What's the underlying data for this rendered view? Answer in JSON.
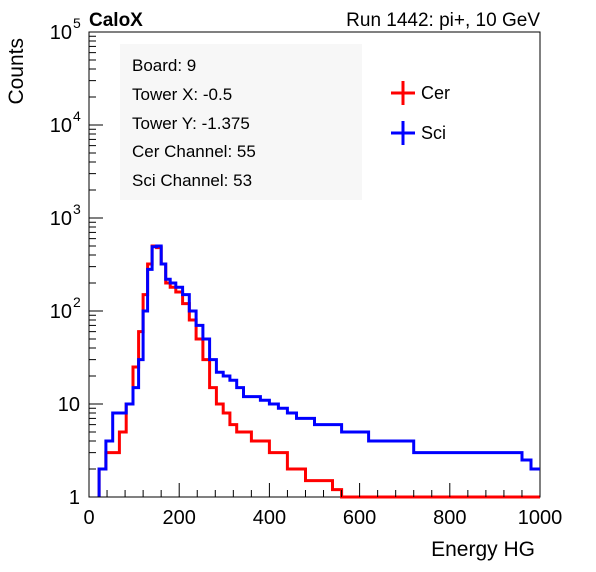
{
  "header": {
    "left": "CaloX",
    "right": "Run 1442: pi+, 10 GeV"
  },
  "info_box": {
    "lines": [
      "Board: 9",
      "Tower X: -0.5",
      "Tower Y: -1.375",
      "Cer Channel: 55",
      "Sci Channel: 53"
    ]
  },
  "colors": {
    "Cer": "#ff0000",
    "Sci": "#0000ff"
  },
  "chart_data": {
    "type": "line",
    "style": "step histogram",
    "title": "",
    "xlabel": "Energy HG",
    "ylabel": "Counts",
    "xlim": [
      0,
      1000
    ],
    "ylim": [
      1,
      100000
    ],
    "ylog": true,
    "grid": false,
    "legend_position": "top-right",
    "x_ticks": [
      "0",
      "200",
      "400",
      "600",
      "800",
      "1000"
    ],
    "y_ticks": [
      {
        "base": "1",
        "exp": ""
      },
      {
        "base": "10",
        "exp": ""
      },
      {
        "base": "10",
        "exp": "2"
      },
      {
        "base": "10",
        "exp": "3"
      },
      {
        "base": "10",
        "exp": "4"
      },
      {
        "base": "10",
        "exp": "5"
      }
    ],
    "x": [
      30,
      45,
      60,
      75,
      90,
      105,
      115,
      125,
      135,
      145,
      155,
      165,
      175,
      185,
      200,
      215,
      230,
      245,
      260,
      275,
      290,
      305,
      320,
      335,
      350,
      370,
      390,
      410,
      430,
      450,
      470,
      490,
      510,
      530,
      550,
      570,
      590,
      610,
      630,
      650,
      670,
      690,
      710,
      730,
      750,
      770,
      790,
      810,
      830,
      850,
      870,
      890,
      910,
      930,
      950,
      970,
      990
    ],
    "series": [
      {
        "name": "Cer",
        "values": [
          2,
          3,
          3,
          5,
          10,
          25,
          60,
          150,
          320,
          500,
          480,
          320,
          200,
          180,
          160,
          120,
          80,
          50,
          30,
          15,
          10,
          8,
          6,
          5,
          5,
          4,
          4,
          3,
          3,
          2,
          2,
          1.5,
          1.5,
          1.5,
          1.2,
          1,
          1,
          1,
          1,
          1,
          1,
          1,
          1,
          1,
          1,
          1,
          1,
          1,
          1,
          1,
          1,
          1,
          1,
          1,
          1,
          1,
          1
        ]
      },
      {
        "name": "Sci",
        "values": [
          2,
          4,
          8,
          8,
          10,
          15,
          30,
          100,
          280,
          490,
          500,
          320,
          220,
          200,
          180,
          150,
          100,
          70,
          50,
          30,
          22,
          20,
          18,
          15,
          12,
          12,
          11,
          10,
          9,
          8,
          7,
          7,
          6,
          6,
          6,
          5,
          5,
          5,
          4,
          4,
          4,
          4,
          4,
          3,
          3,
          3,
          3,
          3,
          3,
          3,
          3,
          3,
          3,
          3,
          3,
          2.5,
          2
        ]
      }
    ]
  }
}
